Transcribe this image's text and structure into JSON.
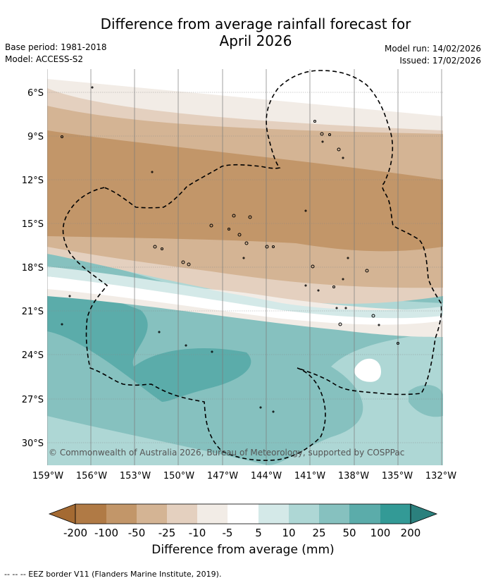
{
  "header": {
    "title_line1": "Difference from average rainfall forecast for",
    "title_line2": "April 2026",
    "base_period": "Base period: 1981-2018",
    "model": "Model: ACCESS-S2",
    "model_run": "Model run: 14/02/2026",
    "issued": "Issued: 17/02/2026"
  },
  "map": {
    "lat_labels": [
      "6°S",
      "9°S",
      "12°S",
      "15°S",
      "18°S",
      "21°S",
      "24°S",
      "27°S",
      "30°S"
    ],
    "lon_labels": [
      "159°W",
      "156°W",
      "153°W",
      "150°W",
      "147°W",
      "144°W",
      "141°W",
      "138°W",
      "135°W",
      "132°W"
    ],
    "copyright": "© Commonwealth of Australia 2026, Bureau of Meteorology, supported by COSPPac"
  },
  "colorbar": {
    "tick_labels": [
      "-200",
      "-100",
      "-50",
      "-25",
      "-10",
      "-5",
      "5",
      "10",
      "25",
      "50",
      "100",
      "200"
    ],
    "colors": {
      "lt_m200": "#a46a32",
      "m200_m100": "#b07a45",
      "m100_m50": "#c29669",
      "m50_m25": "#d4b494",
      "m25_m10": "#e4d0bf",
      "m10_m5": "#f2ece6",
      "m5_5": "#ffffff",
      "5_10": "#d4e9e8",
      "10_25": "#aed7d5",
      "25_50": "#86c1bf",
      "50_100": "#5bacaa",
      "100_200": "#339a96",
      "gt_200": "#2b807d"
    },
    "label": "Difference from average (mm)"
  },
  "footnote": "--  --  -- EEZ border V11 (Flanders Marine Institute, 2019)."
}
